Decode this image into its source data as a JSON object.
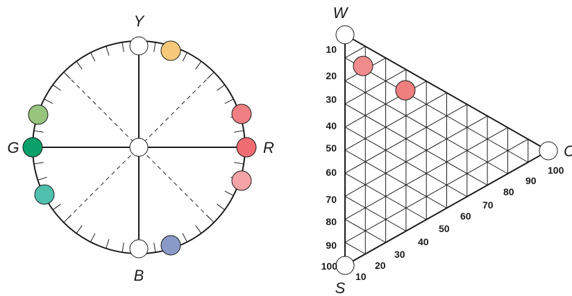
{
  "hue_circle": {
    "labels": {
      "top": "Y",
      "bottom": "B",
      "left": "G",
      "right": "R"
    },
    "sample_colors": [
      "#f5c97a",
      "#ef7f82",
      "#ee6c72",
      "#f4a3a6",
      "#97c57e",
      "#0aa06a",
      "#4fc0ae",
      "#8a9ac8"
    ]
  },
  "triangle": {
    "labels": {
      "white": "W",
      "black": "S",
      "chroma": "C"
    },
    "whiteness_scale": [
      "10",
      "20",
      "30",
      "40",
      "50",
      "60",
      "70",
      "80",
      "90",
      "100"
    ],
    "chroma_scale": [
      "10",
      "20",
      "30",
      "40",
      "50",
      "60",
      "70",
      "80",
      "90",
      "100"
    ],
    "sample_colors": [
      "#f08c8c",
      "#ee7f7f"
    ]
  },
  "colors": {
    "line": "#1a1a1a",
    "node_fill": "#ffffff"
  }
}
